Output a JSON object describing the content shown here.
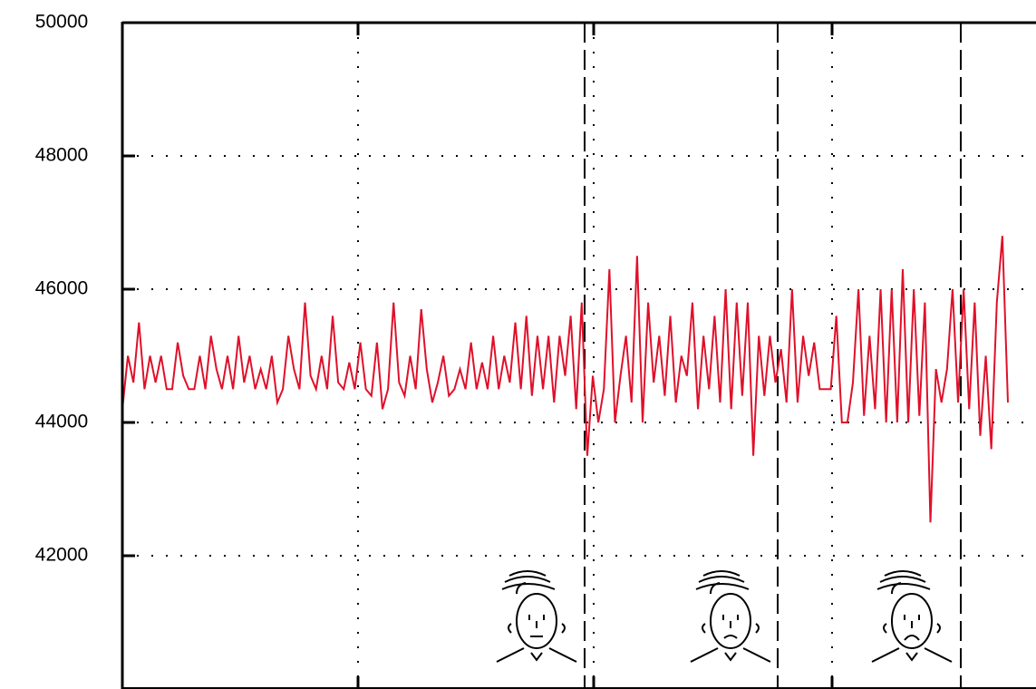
{
  "chart_data": {
    "type": "line",
    "color": "#e0102a",
    "grid": true,
    "ylim": [
      40000,
      50000
    ],
    "yticks": [
      42000,
      44000,
      46000,
      48000,
      50000
    ],
    "values": [
      44200,
      45000,
      44600,
      45500,
      44500,
      45000,
      44600,
      45000,
      44500,
      44500,
      45200,
      44700,
      44500,
      44500,
      45000,
      44500,
      45300,
      44800,
      44500,
      45000,
      44500,
      45300,
      44600,
      45000,
      44500,
      44800,
      44500,
      45000,
      44300,
      44500,
      45300,
      44800,
      44500,
      45800,
      44700,
      44500,
      45000,
      44500,
      45600,
      44600,
      44500,
      44900,
      44500,
      45200,
      44500,
      44400,
      45200,
      44200,
      44500,
      45800,
      44600,
      44400,
      45000,
      44500,
      45700,
      44800,
      44300,
      44600,
      45000,
      44400,
      44500,
      44800,
      44500,
      45200,
      44500,
      44900,
      44500,
      45300,
      44500,
      45000,
      44600,
      45500,
      44500,
      45600,
      44400,
      45300,
      44500,
      45300,
      44300,
      45300,
      44700,
      45600,
      44200,
      45800,
      43500,
      44700,
      44000,
      44500,
      46300,
      44000,
      44700,
      45300,
      44300,
      46500,
      44000,
      45800,
      44600,
      45300,
      44400,
      45600,
      44300,
      45000,
      44700,
      45800,
      44200,
      45300,
      44500,
      45600,
      44300,
      46000,
      44200,
      45800,
      44400,
      45800,
      43500,
      45300,
      44400,
      45300,
      44600,
      45100,
      44300,
      46000,
      44300,
      45300,
      44700,
      45200,
      44500,
      44500,
      44500,
      45600,
      44000,
      44000,
      44600,
      46000,
      44100,
      45300,
      44200,
      46000,
      44000,
      46000,
      44000,
      46300,
      44000,
      46000,
      44100,
      45800,
      42500,
      44800,
      44300,
      44800,
      46000,
      44300,
      46000,
      44200,
      45800,
      43800,
      45000,
      43600,
      45800,
      46800,
      44300
    ]
  }
}
